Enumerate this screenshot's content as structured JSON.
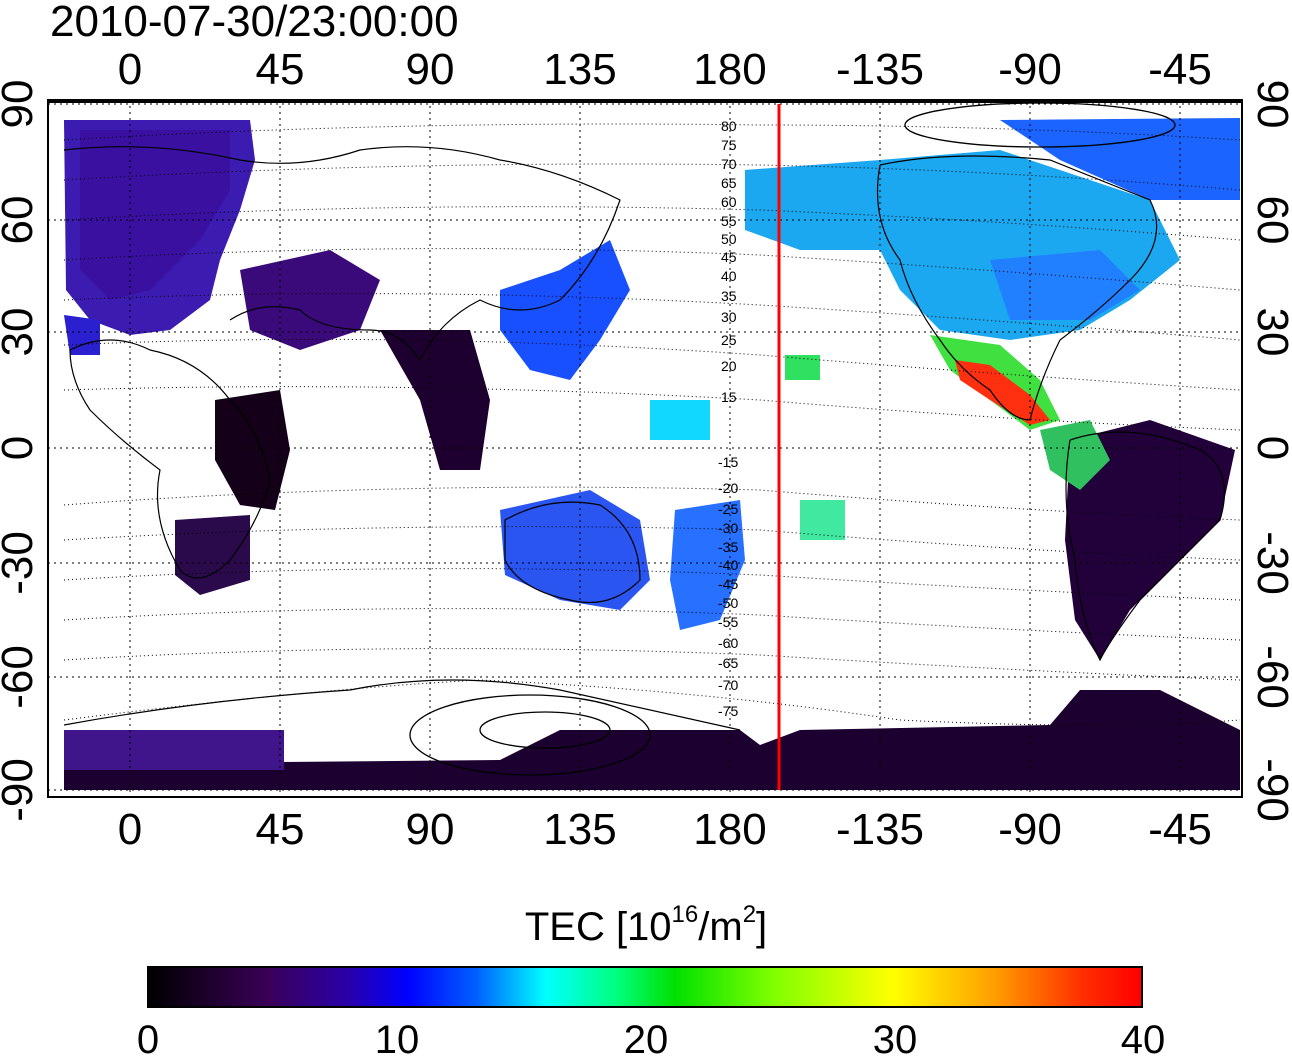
{
  "timestamp": "2010-07-30/23:00:00",
  "map": {
    "type": "ionospheric_tec_map",
    "lon_ticks_top": [
      "0",
      "45",
      "90",
      "135",
      "180",
      "-135",
      "-90",
      "-45"
    ],
    "lon_ticks_bottom": [
      "0",
      "45",
      "90",
      "135",
      "180",
      "-135",
      "-90",
      "-45"
    ],
    "lat_ticks_left": [
      "90",
      "60",
      "30",
      "0",
      "-30",
      "-60",
      "-90"
    ],
    "lat_ticks_right": [
      "90",
      "60",
      "30",
      "0",
      "-30",
      "-60",
      "-90"
    ],
    "contour_labels_north": [
      "80",
      "75",
      "70",
      "65",
      "60",
      "55",
      "50",
      "45",
      "40",
      "35",
      "30",
      "25",
      "20",
      "15"
    ],
    "contour_labels_south": [
      "-15",
      "-20",
      "-25",
      "-30",
      "-35",
      "-40",
      "-45",
      "-50",
      "-55",
      "-60",
      "-65",
      "-70",
      "-75"
    ],
    "meridian_line_color": "#ff0000",
    "meridian_line_lon": -162
  },
  "colorbar": {
    "title_prefix": "TEC  [10",
    "title_exp1": "16",
    "title_mid": "/m",
    "title_exp2": "2",
    "title_suffix": "]",
    "ticks": [
      "0",
      "10",
      "20",
      "30",
      "40"
    ],
    "min": 0,
    "max": 40
  }
}
